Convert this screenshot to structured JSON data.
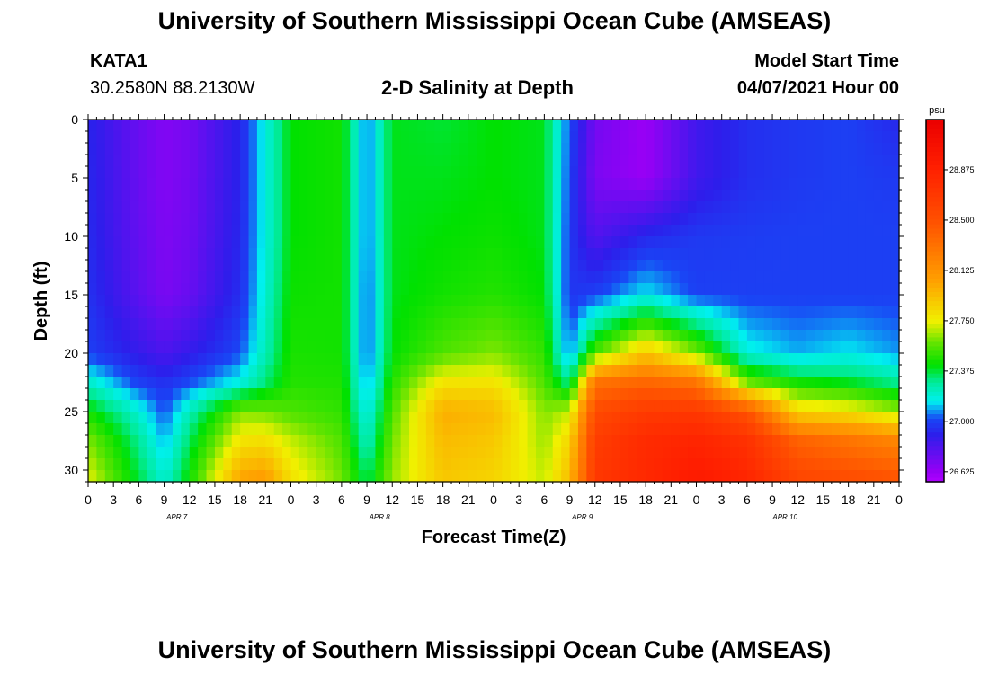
{
  "header": {
    "title": "University of Southern Mississippi Ocean Cube (AMSEAS)",
    "station": "KATA1",
    "coords": "30.2580N  88.2130W",
    "plot_title": "2-D Salinity at Depth",
    "model_label": "Model Start Time",
    "model_time": "04/07/2021 Hour 00"
  },
  "footer": {
    "title": "University of Southern Mississippi Ocean Cube (AMSEAS)"
  },
  "chart_data": {
    "type": "heatmap",
    "title": "2-D Salinity at Depth",
    "xlabel": "Forecast Time(Z)",
    "ylabel": "Depth (ft)",
    "x_hours_range": [
      0,
      96
    ],
    "x_tick_step_hours": 3,
    "x_tick_labels": [
      "0",
      "3",
      "6",
      "9",
      "12",
      "15",
      "18",
      "21",
      "0",
      "3",
      "6",
      "9",
      "12",
      "15",
      "18",
      "21",
      "0",
      "3",
      "6",
      "9",
      "12",
      "15",
      "18",
      "21",
      "0",
      "3",
      "6",
      "9",
      "12",
      "15",
      "18",
      "21",
      "0"
    ],
    "date_labels": [
      {
        "label": "APR 7",
        "hour": 10.5
      },
      {
        "label": "APR 8",
        "hour": 34.5
      },
      {
        "label": "APR 9",
        "hour": 58.5
      },
      {
        "label": "APR 10",
        "hour": 82.5
      }
    ],
    "y_range": [
      0,
      31
    ],
    "y_ticks": [
      0,
      5,
      10,
      15,
      20,
      25,
      30
    ],
    "colorbar": {
      "unit": "psu",
      "min": 26.55,
      "max": 29.25,
      "tick_values": [
        26.625,
        27.0,
        27.375,
        27.75,
        28.125,
        28.5,
        28.875
      ],
      "tick_labels": [
        "26.625",
        "27.000",
        "27.375",
        "27.750",
        "28.125",
        "28.500",
        "28.875"
      ]
    },
    "grid": {
      "depths_ft": [
        0,
        5,
        10,
        15,
        20,
        22.5,
        25,
        27.5,
        31
      ],
      "times_hours": [
        0,
        6,
        9,
        12,
        18,
        21,
        24,
        30,
        33,
        36,
        42,
        48,
        54,
        57,
        60,
        66,
        72,
        78,
        84,
        90,
        96
      ],
      "salinity_psu": [
        [
          26.92,
          26.75,
          26.68,
          26.72,
          26.92,
          27.18,
          27.42,
          27.45,
          27.05,
          27.4,
          27.38,
          27.42,
          27.4,
          27.02,
          26.72,
          26.62,
          26.85,
          26.95,
          26.98,
          27.0,
          26.93
        ],
        [
          26.93,
          26.75,
          26.68,
          26.72,
          26.92,
          27.18,
          27.42,
          27.45,
          27.05,
          27.4,
          27.4,
          27.42,
          27.4,
          27.0,
          26.7,
          26.62,
          26.85,
          26.95,
          26.98,
          27.0,
          26.98
        ],
        [
          26.94,
          26.76,
          26.69,
          26.73,
          26.93,
          27.18,
          27.42,
          27.45,
          27.05,
          27.4,
          27.42,
          27.44,
          27.4,
          26.98,
          26.8,
          26.93,
          26.98,
          26.99,
          27.0,
          27.0,
          27.0
        ],
        [
          26.96,
          26.78,
          26.7,
          26.75,
          26.95,
          27.2,
          27.44,
          27.45,
          27.03,
          27.4,
          27.45,
          27.48,
          27.42,
          26.97,
          27.0,
          27.15,
          27.0,
          27.0,
          27.0,
          27.0,
          27.0
        ],
        [
          27.0,
          26.88,
          26.82,
          26.88,
          27.02,
          27.25,
          27.46,
          27.45,
          27.03,
          27.42,
          27.55,
          27.62,
          27.5,
          27.05,
          27.55,
          27.9,
          27.62,
          27.18,
          27.1,
          27.15,
          27.08
        ],
        [
          27.22,
          27.0,
          26.95,
          27.02,
          27.18,
          27.33,
          27.48,
          27.47,
          27.08,
          27.48,
          27.8,
          27.8,
          27.55,
          27.3,
          28.3,
          28.38,
          28.3,
          27.6,
          27.45,
          27.4,
          27.3
        ],
        [
          27.45,
          27.2,
          27.02,
          27.25,
          27.62,
          27.6,
          27.55,
          27.5,
          27.15,
          27.55,
          28.0,
          27.95,
          27.62,
          27.7,
          28.55,
          28.68,
          28.7,
          28.5,
          27.85,
          27.8,
          27.65
        ],
        [
          27.62,
          27.3,
          27.1,
          27.35,
          27.8,
          27.82,
          27.7,
          27.55,
          27.22,
          27.6,
          27.95,
          27.9,
          27.65,
          27.85,
          28.65,
          28.8,
          28.85,
          28.75,
          28.4,
          28.3,
          28.2
        ],
        [
          27.75,
          27.38,
          27.2,
          27.45,
          28.05,
          28.1,
          27.82,
          27.6,
          27.35,
          27.65,
          27.9,
          27.85,
          27.7,
          27.95,
          28.7,
          28.82,
          28.95,
          28.85,
          28.6,
          28.55,
          28.5
        ]
      ]
    }
  }
}
